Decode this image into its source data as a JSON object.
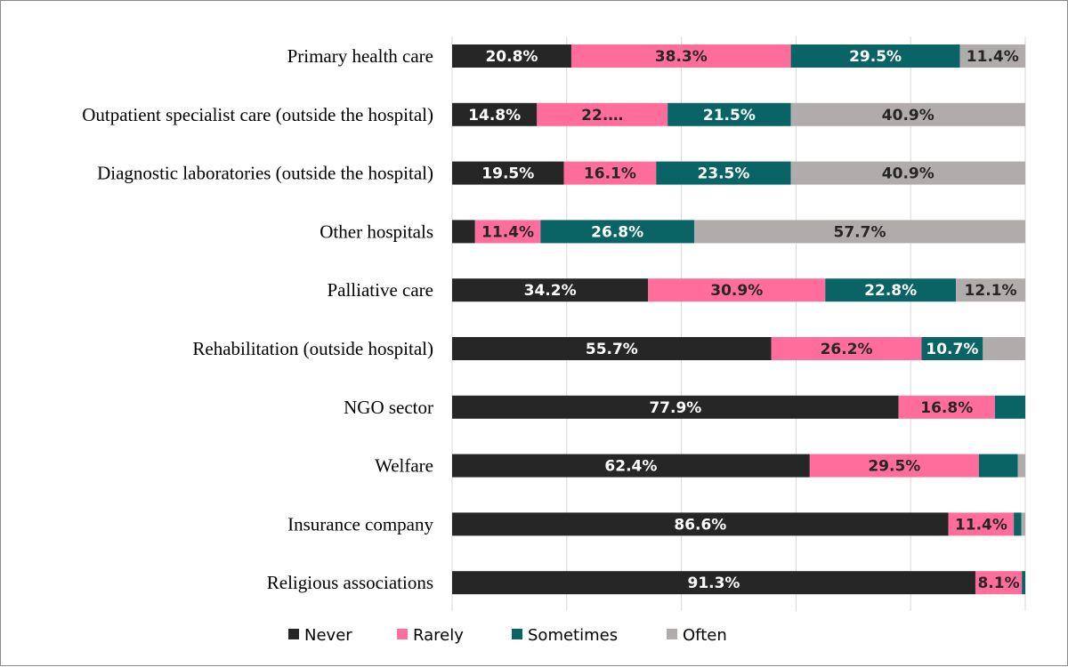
{
  "chart_data": {
    "type": "bar",
    "orientation": "horizontal",
    "stacked": "percent",
    "title": "",
    "xlabel": "",
    "ylabel": "",
    "xlim": [
      0,
      100
    ],
    "grid": "vertical",
    "legend_position": "bottom",
    "categories": [
      "Primary health care",
      "Outpatient specialist care (outside the hospital)",
      "Diagnostic laboratories (outside the hospital)",
      "Other hospitals",
      "Palliative care",
      "Rehabilitation (outside hospital)",
      "NGO sector",
      "Welfare",
      "Insurance company",
      "Religious associations"
    ],
    "series": [
      {
        "name": "Never",
        "color": "#262626",
        "label_color": "#ffffff",
        "values": [
          20.8,
          14.8,
          19.5,
          4.0,
          34.2,
          55.7,
          77.9,
          62.4,
          86.6,
          91.3
        ],
        "labels": [
          "20.8%",
          "14.8%",
          "19.5%",
          "",
          "34.2%",
          "55.7%",
          "77.9%",
          "62.4%",
          "86.6%",
          "91.3%"
        ]
      },
      {
        "name": "Rarely",
        "color": "#ff6d9c",
        "label_color": "#262626",
        "values": [
          38.3,
          22.8,
          16.1,
          11.4,
          30.9,
          26.2,
          16.8,
          29.5,
          11.4,
          8.1
        ],
        "labels": [
          "38.3%",
          "22.…",
          "16.1%",
          "11.4%",
          "30.9%",
          "26.2%",
          "16.8%",
          "29.5%",
          "11.4%",
          "8.1%"
        ]
      },
      {
        "name": "Sometimes",
        "color": "#0a6466",
        "label_color": "#ffffff",
        "values": [
          29.5,
          21.5,
          23.5,
          26.8,
          22.8,
          10.7,
          5.3,
          6.8,
          1.3,
          0.6
        ],
        "labels": [
          "29.5%",
          "21.5%",
          "23.5%",
          "26.8%",
          "22.8%",
          "10.7%",
          "",
          "",
          "",
          ""
        ]
      },
      {
        "name": "Often",
        "color": "#b0acab",
        "label_color": "#262626",
        "values": [
          11.4,
          40.9,
          40.9,
          57.7,
          12.1,
          7.4,
          0,
          1.3,
          0.7,
          0
        ],
        "labels": [
          "11.4%",
          "40.9%",
          "40.9%",
          "57.7%",
          "12.1%",
          "",
          "",
          "",
          "",
          ""
        ]
      }
    ]
  }
}
